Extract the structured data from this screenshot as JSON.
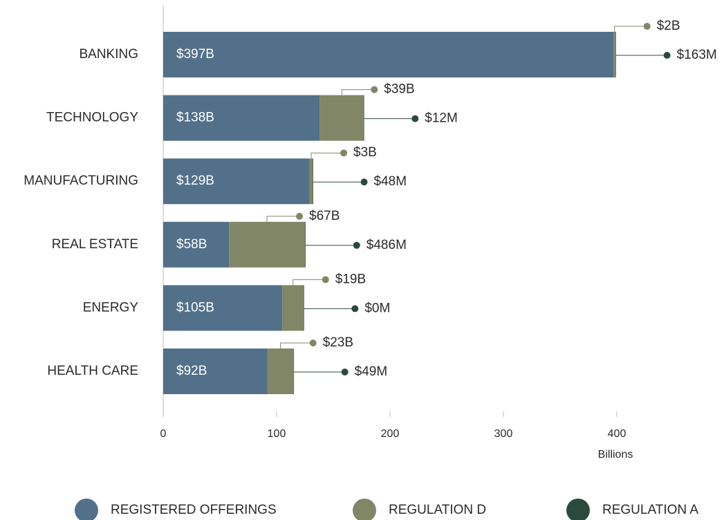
{
  "chart_data": {
    "type": "stacked_barh",
    "categories": [
      "BANKING",
      "TECHNOLOGY",
      "MANUFACTURING",
      "REAL ESTATE",
      "ENERGY",
      "HEALTH CARE"
    ],
    "series": [
      {
        "name": "REGISTERED OFFERINGS",
        "color": "#527089",
        "values": [
          397,
          138,
          129,
          58,
          105,
          92
        ],
        "value_labels": [
          "$397B",
          "$138B",
          "$129B",
          "$58B",
          "$105B",
          "$92B"
        ]
      },
      {
        "name": "REGULATION D",
        "color": "#818667",
        "values": [
          2,
          39,
          3,
          67,
          19,
          23
        ],
        "value_labels": [
          "$2B",
          "$39B",
          "$3B",
          "$67B",
          "$19B",
          "$23B"
        ]
      },
      {
        "name": "REGULATION A",
        "color": "#2b4a3e",
        "values": [
          0.163,
          0.012,
          0.048,
          0.486,
          0,
          0.049
        ],
        "value_labels": [
          "$163M",
          "$12M",
          "$48M",
          "$486M",
          "$0M",
          "$49M"
        ]
      }
    ],
    "xlabel": "Billions",
    "xlim": [
      0,
      400
    ],
    "xticks": [
      0,
      100,
      200,
      300,
      400
    ],
    "legend": "bottom"
  }
}
